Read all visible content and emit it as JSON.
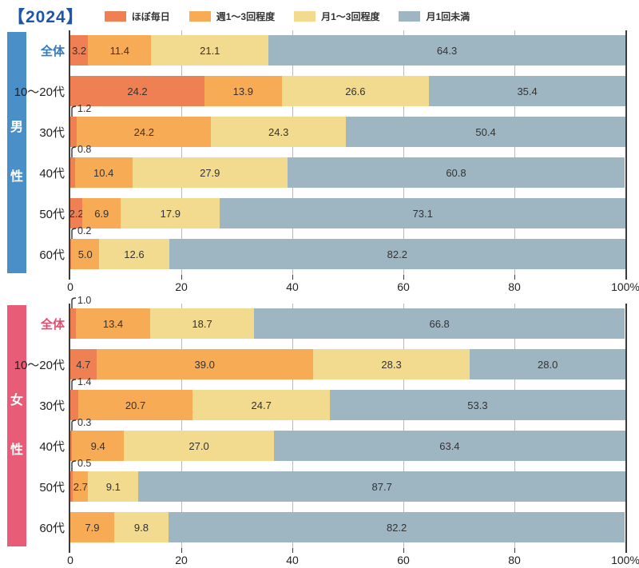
{
  "chart_data": {
    "type": "bar",
    "subtype": "horizontal-stacked-percent",
    "title": "【2024】",
    "title_color": "#1d55a8",
    "legend": [
      {
        "label": "ほぼ毎日",
        "color": "#ee8053"
      },
      {
        "label": "週1〜3回程度",
        "color": "#f7ab55"
      },
      {
        "label": "月1〜3回程度",
        "color": "#f2db8e"
      },
      {
        "label": "月1回未満",
        "color": "#9eb5c2"
      }
    ],
    "xlim": [
      0,
      100
    ],
    "xticks": [
      {
        "value": 0,
        "label": "0"
      },
      {
        "value": 20,
        "label": "20"
      },
      {
        "value": 40,
        "label": "40"
      },
      {
        "value": 60,
        "label": "60"
      },
      {
        "value": 80,
        "label": "80"
      },
      {
        "value": 100,
        "label": "100%"
      }
    ],
    "grid": true,
    "groups": [
      {
        "name": "男性",
        "accent": "#4a8fc7",
        "label_accent": "#3679bc",
        "rows": [
          {
            "label": "全体",
            "emphasis": true,
            "callout": false,
            "values": [
              3.2,
              11.4,
              21.1,
              64.3
            ]
          },
          {
            "label": "10〜20代",
            "emphasis": false,
            "callout": false,
            "values": [
              24.2,
              13.9,
              26.6,
              35.4
            ]
          },
          {
            "label": "30代",
            "emphasis": false,
            "callout": true,
            "values": [
              1.2,
              24.2,
              24.3,
              50.4
            ]
          },
          {
            "label": "40代",
            "emphasis": false,
            "callout": true,
            "values": [
              0.8,
              10.4,
              27.9,
              60.8
            ]
          },
          {
            "label": "50代",
            "emphasis": false,
            "callout": false,
            "values": [
              2.2,
              6.9,
              17.9,
              73.1
            ]
          },
          {
            "label": "60代",
            "emphasis": false,
            "callout": true,
            "values": [
              0.2,
              5.0,
              12.6,
              82.2
            ]
          }
        ]
      },
      {
        "name": "女性",
        "accent": "#e95c77",
        "label_accent": "#e44d6f",
        "rows": [
          {
            "label": "全体",
            "emphasis": true,
            "callout": true,
            "values": [
              1.0,
              13.4,
              18.7,
              66.8
            ]
          },
          {
            "label": "10〜20代",
            "emphasis": false,
            "callout": false,
            "values": [
              4.7,
              39.0,
              28.3,
              28.0
            ]
          },
          {
            "label": "30代",
            "emphasis": false,
            "callout": true,
            "values": [
              1.4,
              20.7,
              24.7,
              53.3
            ]
          },
          {
            "label": "40代",
            "emphasis": false,
            "callout": true,
            "values": [
              0.3,
              9.4,
              27.0,
              63.4
            ]
          },
          {
            "label": "50代",
            "emphasis": false,
            "callout": true,
            "values": [
              0.5,
              2.7,
              9.1,
              87.7
            ]
          },
          {
            "label": "60代",
            "emphasis": false,
            "callout": false,
            "values": [
              0.0,
              7.9,
              9.8,
              82.2
            ]
          }
        ]
      }
    ]
  }
}
